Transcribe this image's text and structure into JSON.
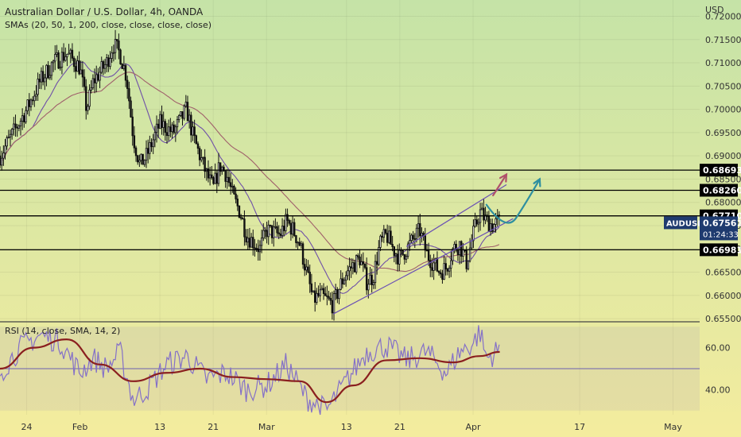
{
  "header": {
    "title": "Australian Dollar / U.S. Dollar, 4h, OANDA",
    "indicators": "SMAs (20, 50, 1, 200, close, close, close, close)",
    "rsi": "RSI (14, close, SMA, 14, 2)"
  },
  "colors": {
    "candle": "#111111",
    "sma_fast": "#6f4fa8",
    "sma_slow": "#a0606b",
    "rsi_line": "#8470c8",
    "rsi_ma": "#8a1f1f",
    "level_line": "#000000",
    "forecast_red": "#b0506a",
    "forecast_blue": "#2f8fa0"
  },
  "chart_data": [
    {
      "type": "candlestick",
      "currency": "USD",
      "ylim": [
        0.6545,
        0.7235
      ],
      "y_ticks": [
        "0.72000",
        "0.71500",
        "0.71000",
        "0.70500",
        "0.70000",
        "0.69500",
        "0.69000",
        "0.68500",
        "0.68000",
        "0.67500",
        "0.67000",
        "0.66500",
        "0.66000",
        "0.65500"
      ],
      "y_tick_values": [
        0.72,
        0.715,
        0.71,
        0.705,
        0.7,
        0.695,
        0.69,
        0.685,
        0.68,
        0.675,
        0.67,
        0.665,
        0.66,
        0.655
      ],
      "x_ticks": [
        "24",
        "Feb",
        "13",
        "21",
        "Mar",
        "13",
        "21",
        "Apr",
        "17",
        "May"
      ],
      "x_tick_dates": [
        "2022-01-24",
        "2022-02-01",
        "2022-02-13",
        "2022-02-21",
        "2022-03-01",
        "2022-03-13",
        "2022-03-21",
        "2022-04-01",
        "2022-04-17",
        "2022-05-01"
      ],
      "xlim": [
        "2022-01-20",
        "2022-05-05"
      ],
      "levels": [
        {
          "label": "0.68693",
          "value": 0.68693
        },
        {
          "label": "0.68260",
          "value": 0.6826
        },
        {
          "label": "0.67710",
          "value": 0.6771
        },
        {
          "label": "0.66981",
          "value": 0.66981
        }
      ],
      "symbol": {
        "name": "AUDUSD",
        "price": "0.67561",
        "value": 0.67561,
        "countdown": "01:24:33"
      },
      "close_path": [
        [
          "2022-01-20",
          0.69
        ],
        [
          "2022-01-22",
          0.695
        ],
        [
          "2022-01-24",
          0.7
        ],
        [
          "2022-01-26",
          0.706
        ],
        [
          "2022-01-28",
          0.71
        ],
        [
          "2022-01-30",
          0.712
        ],
        [
          "2022-02-01",
          0.709
        ],
        [
          "2022-02-02",
          0.7
        ],
        [
          "2022-02-03",
          0.706
        ],
        [
          "2022-02-05",
          0.71
        ],
        [
          "2022-02-06",
          0.714
        ],
        [
          "2022-02-07",
          0.712
        ],
        [
          "2022-02-08",
          0.707
        ],
        [
          "2022-02-09",
          0.694
        ],
        [
          "2022-02-10",
          0.688
        ],
        [
          "2022-02-11",
          0.69
        ],
        [
          "2022-02-13",
          0.697
        ],
        [
          "2022-02-15",
          0.695
        ],
        [
          "2022-02-17",
          0.7
        ],
        [
          "2022-02-18",
          0.694
        ],
        [
          "2022-02-19",
          0.69
        ],
        [
          "2022-02-20",
          0.686
        ],
        [
          "2022-02-21",
          0.683
        ],
        [
          "2022-02-22",
          0.688
        ],
        [
          "2022-02-23",
          0.686
        ],
        [
          "2022-02-24",
          0.681
        ],
        [
          "2022-02-25",
          0.678
        ],
        [
          "2022-02-26",
          0.673
        ],
        [
          "2022-02-28",
          0.67
        ],
        [
          "2022-03-01",
          0.674
        ],
        [
          "2022-03-03",
          0.673
        ],
        [
          "2022-03-04",
          0.676
        ],
        [
          "2022-03-05",
          0.674
        ],
        [
          "2022-03-06",
          0.671
        ],
        [
          "2022-03-07",
          0.665
        ],
        [
          "2022-03-08",
          0.659
        ],
        [
          "2022-03-09",
          0.66
        ],
        [
          "2022-03-10",
          0.659
        ],
        [
          "2022-03-11",
          0.658
        ],
        [
          "2022-03-12",
          0.662
        ],
        [
          "2022-03-13",
          0.665
        ],
        [
          "2022-03-15",
          0.668
        ],
        [
          "2022-03-16",
          0.663
        ],
        [
          "2022-03-17",
          0.664
        ],
        [
          "2022-03-18",
          0.671
        ],
        [
          "2022-03-19",
          0.673
        ],
        [
          "2022-03-20",
          0.67
        ],
        [
          "2022-03-21",
          0.668
        ],
        [
          "2022-03-23",
          0.672
        ],
        [
          "2022-03-24",
          0.674
        ],
        [
          "2022-03-25",
          0.669
        ],
        [
          "2022-03-26",
          0.667
        ],
        [
          "2022-03-27",
          0.665
        ],
        [
          "2022-03-28",
          0.666
        ],
        [
          "2022-03-29",
          0.67
        ],
        [
          "2022-03-30",
          0.671
        ],
        [
          "2022-03-31",
          0.667
        ],
        [
          "2022-04-01",
          0.673
        ],
        [
          "2022-04-02",
          0.678
        ],
        [
          "2022-04-03",
          0.676
        ],
        [
          "2022-04-04",
          0.675
        ],
        [
          "2022-04-05",
          0.676
        ]
      ],
      "annotations": [
        {
          "type": "channel-lower",
          "from": [
            "2022-03-11",
            0.656
          ],
          "to": [
            "2022-04-07",
            0.6765
          ]
        },
        {
          "type": "channel-upper",
          "from": [
            "2022-03-22",
            0.6705
          ],
          "to": [
            "2022-04-06",
            0.6838
          ]
        },
        {
          "type": "arrow-red",
          "points": [
            [
              "2022-04-04",
              0.6815
            ],
            [
              "2022-04-06",
              0.686
            ]
          ]
        },
        {
          "type": "arrow-blue",
          "points": [
            [
              "2022-04-03",
              0.6795
            ],
            [
              "2022-04-06",
              0.6745
            ],
            [
              "2022-04-09",
              0.679
            ],
            [
              "2022-04-11",
              0.685
            ]
          ]
        }
      ]
    },
    {
      "type": "line",
      "ylim": [
        28,
        72
      ],
      "y_ticks": [
        "60.00",
        "40.00"
      ],
      "y_tick_values": [
        60,
        40
      ],
      "midline": 50,
      "rsi_path": [
        [
          "2022-01-20",
          48
        ],
        [
          "2022-01-23",
          60
        ],
        [
          "2022-01-26",
          66
        ],
        [
          "2022-01-29",
          63
        ],
        [
          "2022-02-01",
          48
        ],
        [
          "2022-02-03",
          55
        ],
        [
          "2022-02-05",
          50
        ],
        [
          "2022-02-07",
          58
        ],
        [
          "2022-02-09",
          35
        ],
        [
          "2022-02-11",
          40
        ],
        [
          "2022-02-14",
          52
        ],
        [
          "2022-02-17",
          56
        ],
        [
          "2022-02-20",
          45
        ],
        [
          "2022-02-23",
          48
        ],
        [
          "2022-02-26",
          40
        ],
        [
          "2022-03-01",
          42
        ],
        [
          "2022-03-04",
          52
        ],
        [
          "2022-03-07",
          36
        ],
        [
          "2022-03-10",
          30
        ],
        [
          "2022-03-13",
          44
        ],
        [
          "2022-03-16",
          58
        ],
        [
          "2022-03-19",
          61
        ],
        [
          "2022-03-22",
          54
        ],
        [
          "2022-03-25",
          58
        ],
        [
          "2022-03-28",
          48
        ],
        [
          "2022-03-30",
          58
        ],
        [
          "2022-04-01",
          62
        ],
        [
          "2022-04-02",
          68
        ],
        [
          "2022-04-03",
          55
        ],
        [
          "2022-04-05",
          59
        ]
      ],
      "rsi_ma_path": [
        [
          "2022-01-20",
          50
        ],
        [
          "2022-01-25",
          60
        ],
        [
          "2022-01-30",
          64
        ],
        [
          "2022-02-04",
          52
        ],
        [
          "2022-02-09",
          44
        ],
        [
          "2022-02-14",
          48
        ],
        [
          "2022-02-19",
          50
        ],
        [
          "2022-02-24",
          46
        ],
        [
          "2022-03-01",
          45
        ],
        [
          "2022-03-06",
          44
        ],
        [
          "2022-03-10",
          34
        ],
        [
          "2022-03-14",
          42
        ],
        [
          "2022-03-19",
          54
        ],
        [
          "2022-03-24",
          55
        ],
        [
          "2022-03-29",
          53
        ],
        [
          "2022-04-02",
          56
        ],
        [
          "2022-04-05",
          58
        ]
      ]
    }
  ]
}
